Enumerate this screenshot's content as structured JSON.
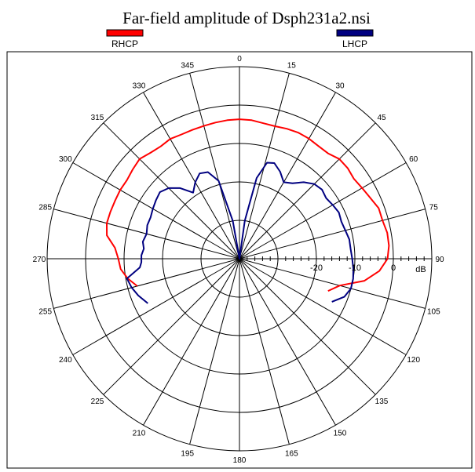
{
  "chart_data": {
    "type": "polar-line",
    "title": "Far-field amplitude of Dsph231a2.nsi",
    "legend_placement": "top",
    "radial_unit": "dB",
    "radial_range": [
      -40,
      10
    ],
    "radial_ticks": [
      {
        "value": -20,
        "label": "-20"
      },
      {
        "value": -10,
        "label": "-10"
      },
      {
        "value": 0,
        "label": "0"
      }
    ],
    "angle_ticks": [
      {
        "value": 0,
        "label": "0"
      },
      {
        "value": 15,
        "label": "15"
      },
      {
        "value": 30,
        "label": "30"
      },
      {
        "value": 45,
        "label": "45"
      },
      {
        "value": 60,
        "label": "60"
      },
      {
        "value": 75,
        "label": "75"
      },
      {
        "value": 90,
        "label": "90"
      },
      {
        "value": 105,
        "label": "105"
      },
      {
        "value": 120,
        "label": "120"
      },
      {
        "value": 135,
        "label": "135"
      },
      {
        "value": 150,
        "label": "150"
      },
      {
        "value": 165,
        "label": "165"
      },
      {
        "value": 180,
        "label": "180"
      },
      {
        "value": 195,
        "label": "195"
      },
      {
        "value": 210,
        "label": "210"
      },
      {
        "value": 225,
        "label": "225"
      },
      {
        "value": 240,
        "label": "240"
      },
      {
        "value": 255,
        "label": "255"
      },
      {
        "value": 270,
        "label": "270"
      },
      {
        "value": 285,
        "label": "285"
      },
      {
        "value": 300,
        "label": "300"
      },
      {
        "value": 315,
        "label": "315"
      },
      {
        "value": 330,
        "label": "330"
      },
      {
        "value": 345,
        "label": "345"
      }
    ],
    "grid": true,
    "series": [
      {
        "name": "RHCP",
        "color": "#ff0000",
        "points": [
          [
            -105,
            -12.5
          ],
          [
            -100,
            -10.5
          ],
          [
            -95,
            -9.0
          ],
          [
            -90,
            -8.5
          ],
          [
            -85,
            -7.5
          ],
          [
            -80,
            -5.0
          ],
          [
            -75,
            -4.3
          ],
          [
            -70,
            -4.3
          ],
          [
            -65,
            -4.3
          ],
          [
            -60,
            -4.2
          ],
          [
            -55,
            -4.3
          ],
          [
            -50,
            -3.8
          ],
          [
            -45,
            -3.3
          ],
          [
            -40,
            -4.0
          ],
          [
            -35,
            -4.3
          ],
          [
            -30,
            -4.0
          ],
          [
            -25,
            -4.3
          ],
          [
            -20,
            -4.3
          ],
          [
            -15,
            -4.2
          ],
          [
            -10,
            -4.0
          ],
          [
            -5,
            -3.8
          ],
          [
            0,
            -3.7
          ],
          [
            5,
            -3.8
          ],
          [
            10,
            -4.2
          ],
          [
            15,
            -4.3
          ],
          [
            20,
            -4.0
          ],
          [
            25,
            -3.8
          ],
          [
            30,
            -3.9
          ],
          [
            35,
            -4.2
          ],
          [
            40,
            -4.2
          ],
          [
            45,
            -3.3
          ],
          [
            50,
            -3.3
          ],
          [
            55,
            -3.7
          ],
          [
            60,
            -3.2
          ],
          [
            65,
            -2.5
          ],
          [
            70,
            -1.5
          ],
          [
            75,
            -1.5
          ],
          [
            80,
            -1.0
          ],
          [
            85,
            -1.0
          ],
          [
            90,
            -1.5
          ],
          [
            95,
            -3.5
          ],
          [
            100,
            -7.0
          ],
          [
            105,
            -13.0
          ],
          [
            110,
            -15.5
          ]
        ]
      },
      {
        "name": "LHCP",
        "color": "#000080",
        "points": [
          [
            -116,
            -13.5
          ],
          [
            -110,
            -12.0
          ],
          [
            -105,
            -11.0
          ],
          [
            -100,
            -10.3
          ],
          [
            -95,
            -14.0
          ],
          [
            -92,
            -14.5
          ],
          [
            -88,
            -14.5
          ],
          [
            -84,
            -15.0
          ],
          [
            -80,
            -14.5
          ],
          [
            -75,
            -15.0
          ],
          [
            -70,
            -14.5
          ],
          [
            -65,
            -14.5
          ],
          [
            -60,
            -14.0
          ],
          [
            -55,
            -13.5
          ],
          [
            -50,
            -13.0
          ],
          [
            -45,
            -14.0
          ],
          [
            -40,
            -16.0
          ],
          [
            -35,
            -19.0
          ],
          [
            -30,
            -17.0
          ],
          [
            -25,
            -15.5
          ],
          [
            -20,
            -16.0
          ],
          [
            -15,
            -19.0
          ],
          [
            -10,
            -30.0
          ],
          [
            -5,
            -40.0
          ],
          [
            0,
            -40.0
          ],
          [
            5,
            -40.0
          ],
          [
            8,
            -30.0
          ],
          [
            12,
            -18.5
          ],
          [
            16,
            -14.0
          ],
          [
            20,
            -13.5
          ],
          [
            25,
            -15.0
          ],
          [
            30,
            -17.0
          ],
          [
            35,
            -16.0
          ],
          [
            40,
            -14.0
          ],
          [
            45,
            -12.5
          ],
          [
            50,
            -12.0
          ],
          [
            55,
            -12.5
          ],
          [
            60,
            -12.0
          ],
          [
            65,
            -11.5
          ],
          [
            70,
            -11.8
          ],
          [
            75,
            -11.5
          ],
          [
            80,
            -11.0
          ],
          [
            85,
            -11.0
          ],
          [
            90,
            -10.7
          ],
          [
            95,
            -10.3
          ],
          [
            100,
            -10.0
          ],
          [
            105,
            -10.0
          ],
          [
            110,
            -11.0
          ],
          [
            115,
            -13.5
          ]
        ]
      }
    ]
  }
}
